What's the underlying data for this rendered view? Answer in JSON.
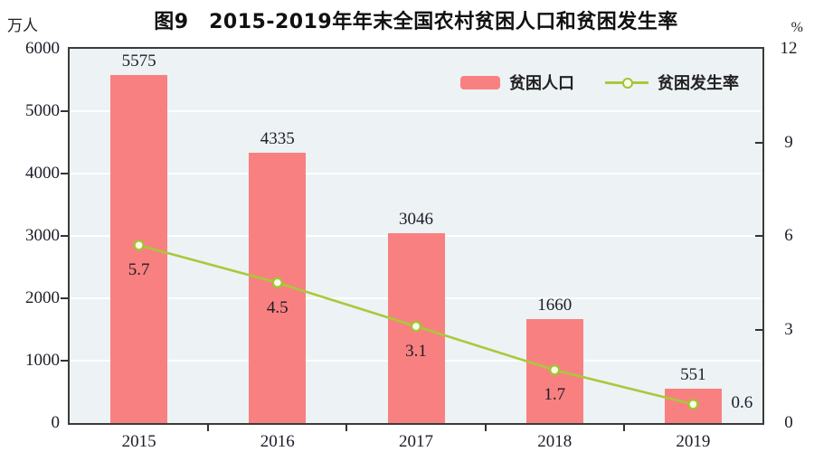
{
  "figure": {
    "title": "图9　2015-2019年年末全国农村贫困人口和贫困发生率"
  },
  "chart_data": {
    "type": "bar",
    "subtype": "bar-line-combo",
    "title": "图9　2015-2019年年末全国农村贫困人口和贫困发生率",
    "categories": [
      "2015",
      "2016",
      "2017",
      "2018",
      "2019"
    ],
    "series": [
      {
        "name": "贫困人口",
        "type": "bar",
        "axis": "left",
        "values": [
          5575,
          4335,
          3046,
          1660,
          551
        ],
        "color": "#f98080"
      },
      {
        "name": "贫困发生率",
        "type": "line",
        "axis": "right",
        "values": [
          5.7,
          4.5,
          3.1,
          1.7,
          0.6
        ],
        "color": "#abc83b",
        "marker_fill": "#fbfde9",
        "marker_stroke": "#a2c336",
        "label_positions": [
          "below",
          "below",
          "below",
          "below",
          "right"
        ]
      }
    ],
    "left_axis": {
      "unit": "万人",
      "min": 0,
      "max": 6000,
      "tick_step": 1000,
      "tick_labels": [
        "0",
        "1000",
        "2000",
        "3000",
        "4000",
        "5000",
        "6000"
      ]
    },
    "right_axis": {
      "unit": "%",
      "min": 0,
      "max": 12,
      "tick_step": 3,
      "tick_labels": [
        "0",
        "3",
        "6",
        "9",
        "12"
      ]
    },
    "grid": true,
    "grid_color": "#ffffff",
    "plot_background": "#edf2f5",
    "legend_position": "top-right-inside"
  }
}
